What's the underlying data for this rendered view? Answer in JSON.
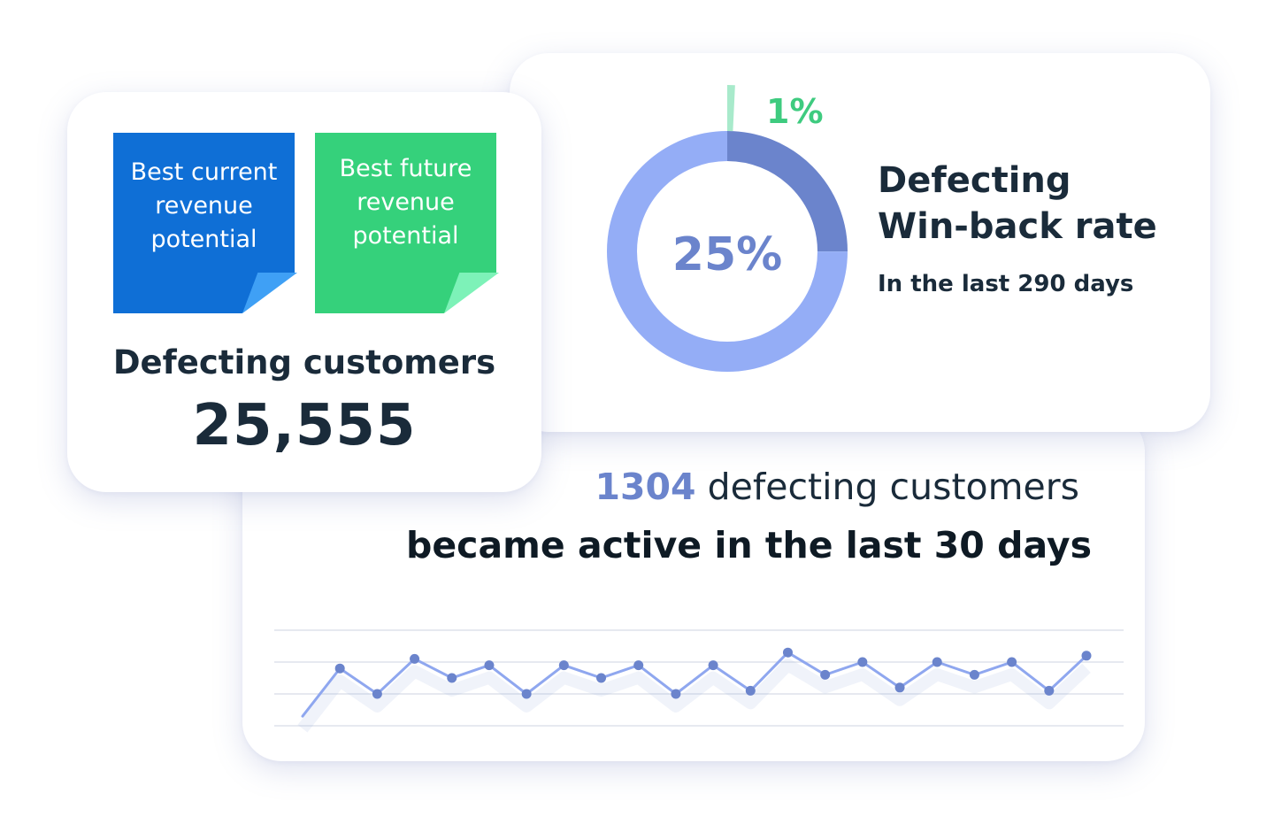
{
  "defecting_card": {
    "notes": {
      "current": "Best current revenue potential",
      "future": "Best future revenue potential"
    },
    "title": "Defecting customers",
    "value": "25,555"
  },
  "winback_card": {
    "center_label": "25%",
    "small_label": "1%",
    "title_line1": "Defecting",
    "title_line2": "Win-back rate",
    "subtitle": "In the last 290 days"
  },
  "trend_card": {
    "count": "1304",
    "line1_rest": " defecting customers",
    "line2": "became active in the last 30 days"
  },
  "chart_data": [
    {
      "type": "pie",
      "variant": "donut",
      "slices": [
        {
          "label": "25%",
          "value": 25,
          "color": "#6b84cc"
        },
        {
          "label": "",
          "value": 75,
          "color": "#94adf6"
        }
      ],
      "outer_segment": {
        "label": "1%",
        "value": 1,
        "color": "#a8eacb"
      },
      "label_color": "#3ecb7f"
    },
    {
      "type": "line",
      "series": [
        {
          "values": [
            0.3,
            1.8,
            1.0,
            2.1,
            1.5,
            1.9,
            1.0,
            1.9,
            1.5,
            1.9,
            1.0,
            1.9,
            1.1,
            2.3,
            1.6,
            2.0,
            1.2,
            2.0,
            1.6,
            2.0,
            1.1,
            2.2
          ]
        }
      ],
      "ylim": [
        0,
        3
      ],
      "grid": true,
      "first_point_marker": false,
      "color": "#6b84cc"
    }
  ]
}
